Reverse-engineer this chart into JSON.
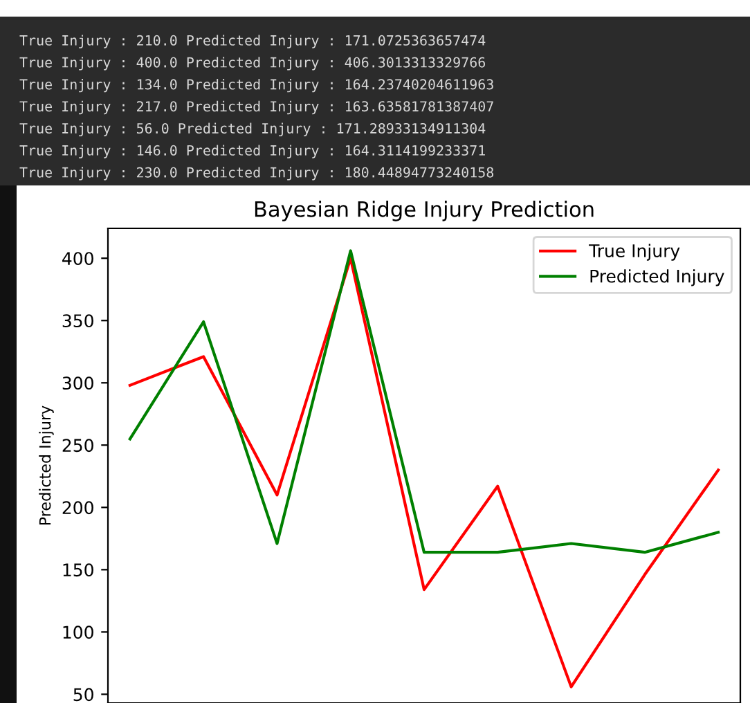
{
  "chart_data": {
    "type": "line",
    "title": "Bayesian Ridge Injury Prediction",
    "ylabel": "Predicted Injury",
    "categories": [
      null,
      null,
      null,
      null,
      null,
      null,
      null,
      null,
      null
    ],
    "series": [
      {
        "name": "True Injury",
        "color": "#ff0000",
        "values": [
          298,
          321,
          210,
          400,
          134,
          217,
          56,
          146,
          230
        ]
      },
      {
        "name": "Predicted Injury",
        "color": "#008000",
        "values": [
          255,
          349,
          171,
          406,
          164,
          164,
          171,
          164,
          180
        ]
      }
    ],
    "ylim": [
      43,
      424
    ],
    "yticks": [
      50,
      100,
      150,
      200,
      250,
      300,
      350,
      400
    ],
    "tick_labels": "y",
    "legend": "top right",
    "grid": false,
    "marker": "none",
    "line_style": "solid",
    "annotations": [
      "True Injury : 210.0 Predicted Injury : 171.0725363657474",
      "True Injury : 400.0 Predicted Injury : 406.3013313329766",
      "True Injury : 134.0 Predicted Injury : 164.23740204611963",
      "True Injury : 217.0 Predicted Injury : 163.63581781387407",
      "True Injury : 56.0 Predicted Injury : 171.28933134911304",
      "True Injury : 146.0 Predicted Injury : 164.3114199233371",
      "True Injury : 230.0 Predicted Injury : 180.44894773240158"
    ]
  }
}
